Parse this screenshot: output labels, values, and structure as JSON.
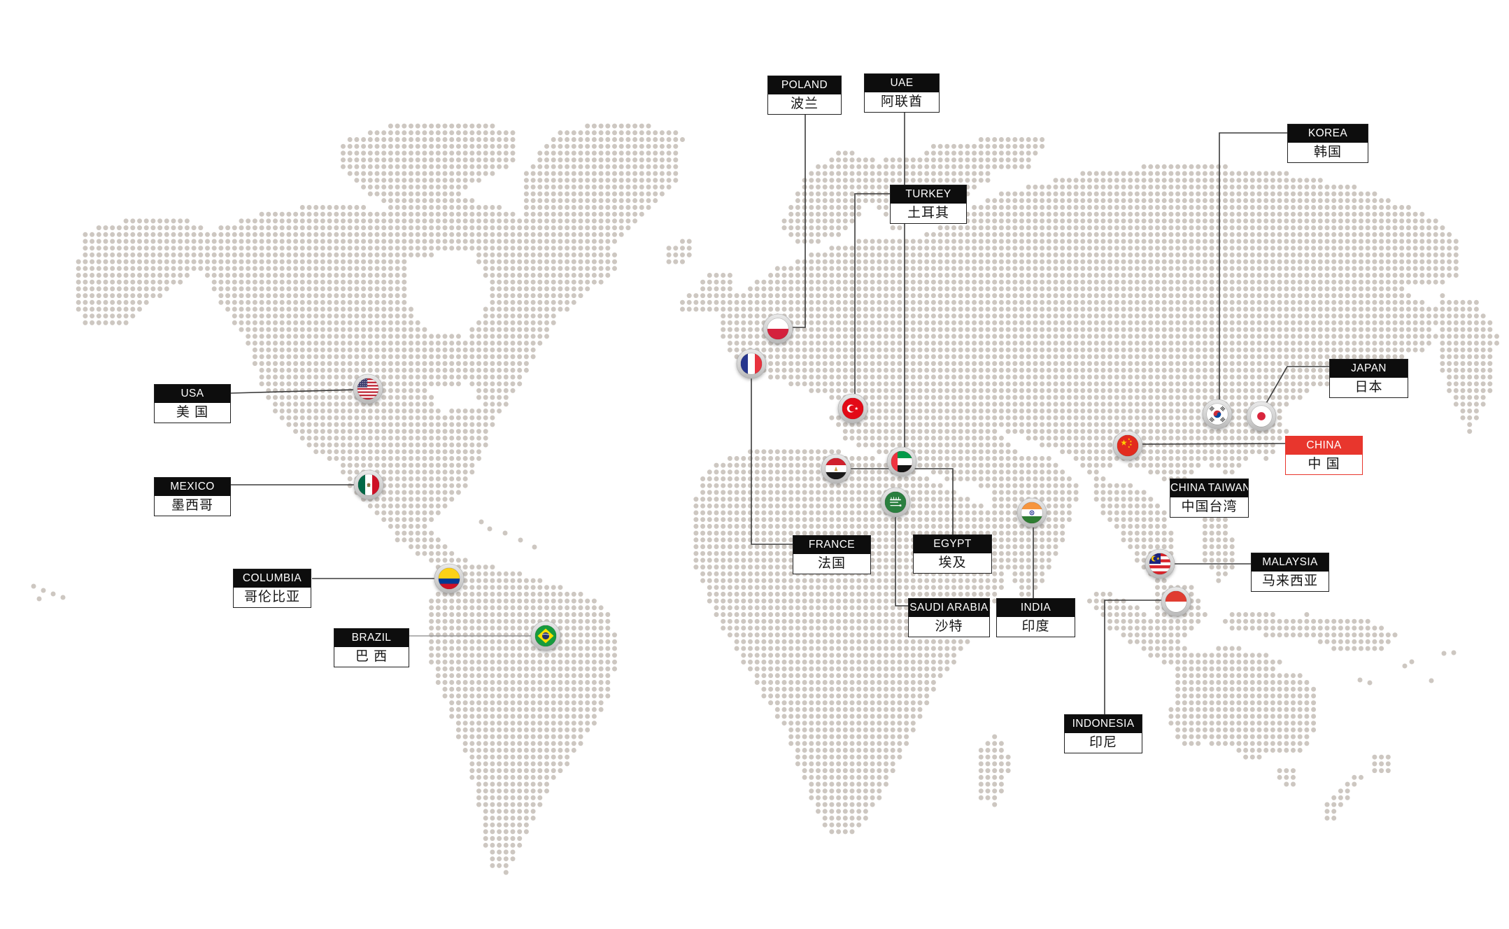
{
  "map": {
    "description": "dotted world map",
    "colors": {
      "dot": "#cdc7c1",
      "line": "#3c3c3c",
      "line_light": "#9a9a9a",
      "label_header_bg": "#0d0d0d",
      "label_header_text": "#ffffff",
      "label_body_bg": "#ffffff",
      "label_body_text": "#151515",
      "highlight_red": "#e8362d",
      "marker_ring": "#cccccc",
      "background": "#ffffff"
    }
  },
  "labels": {
    "poland": {
      "en": "POLAND",
      "zh": "波兰",
      "highlight": false
    },
    "uae": {
      "en": "UAE",
      "zh": "阿联酋",
      "highlight": false
    },
    "korea": {
      "en": "KOREA",
      "zh": "韩国",
      "highlight": false
    },
    "turkey": {
      "en": "TURKEY",
      "zh": "土耳其",
      "highlight": false
    },
    "japan": {
      "en": "JAPAN",
      "zh": "日本",
      "highlight": false
    },
    "china": {
      "en": "CHINA",
      "zh": "中 国",
      "highlight": true
    },
    "china_taiwan": {
      "en": "CHINA TAIWAN",
      "zh": "中国台湾",
      "highlight": false
    },
    "malaysia": {
      "en": "MALAYSIA",
      "zh": "马来西亚",
      "highlight": false
    },
    "usa": {
      "en": "USA",
      "zh": "美 国",
      "highlight": false
    },
    "mexico": {
      "en": "MEXICO",
      "zh": "墨西哥",
      "highlight": false
    },
    "columbia": {
      "en": "COLUMBIA",
      "zh": "哥伦比亚",
      "highlight": false
    },
    "brazil": {
      "en": "BRAZIL",
      "zh": "巴 西",
      "highlight": false
    },
    "france": {
      "en": "FRANCE",
      "zh": "法国",
      "highlight": false
    },
    "egypt": {
      "en": "EGYPT",
      "zh": "埃及",
      "highlight": false
    },
    "saudi_arabia": {
      "en": "SAUDI ARABIA",
      "zh": "沙特",
      "highlight": false
    },
    "india": {
      "en": "INDIA",
      "zh": "印度",
      "highlight": false
    },
    "indonesia": {
      "en": "INDONESIA",
      "zh": "印尼",
      "highlight": false
    }
  },
  "markers": {
    "usa": {
      "icon": "usa-flag-icon"
    },
    "mexico": {
      "icon": "mexico-flag-icon"
    },
    "columbia": {
      "icon": "colombia-flag-icon"
    },
    "brazil": {
      "icon": "brazil-flag-icon"
    },
    "poland": {
      "icon": "poland-flag-icon"
    },
    "france": {
      "icon": "france-flag-icon"
    },
    "turkey": {
      "icon": "turkey-flag-icon"
    },
    "egypt": {
      "icon": "egypt-flag-icon"
    },
    "uae": {
      "icon": "uae-flag-icon"
    },
    "saudi_arabia": {
      "icon": "saudi-arabia-flag-icon"
    },
    "india": {
      "icon": "india-flag-icon"
    },
    "china": {
      "icon": "china-flag-icon"
    },
    "korea": {
      "icon": "korea-flag-icon"
    },
    "japan": {
      "icon": "japan-flag-icon"
    },
    "malaysia": {
      "icon": "malaysia-flag-icon"
    },
    "indonesia": {
      "icon": "indonesia-flag-icon"
    }
  }
}
